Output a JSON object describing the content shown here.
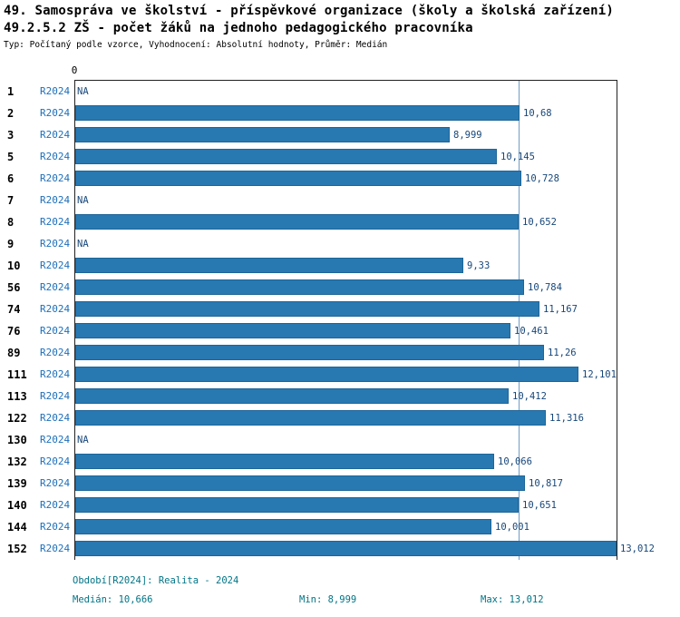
{
  "header": {
    "title1": "49. Samospráva ve školství - příspěvkové organizace (školy a školská zařízení)",
    "title2": "49.2.5.2 ZŠ - počet žáků na jednoho pedagogického pracovníka",
    "meta": "Typ: Počítaný podle vzorce, Vyhodnocení: Absolutní hodnoty, Průměr: Medián"
  },
  "chart_data": {
    "type": "bar",
    "orientation": "horizontal",
    "origin_label": "0",
    "series_label": "R2024",
    "xlim": [
      0,
      13.012
    ],
    "median_value": 10.666,
    "rows": [
      {
        "id": "1",
        "value": null,
        "value_label": "NA"
      },
      {
        "id": "2",
        "value": 10.68,
        "value_label": "10,68"
      },
      {
        "id": "3",
        "value": 8.999,
        "value_label": "8,999"
      },
      {
        "id": "5",
        "value": 10.145,
        "value_label": "10,145"
      },
      {
        "id": "6",
        "value": 10.728,
        "value_label": "10,728"
      },
      {
        "id": "7",
        "value": null,
        "value_label": "NA"
      },
      {
        "id": "8",
        "value": 10.652,
        "value_label": "10,652"
      },
      {
        "id": "9",
        "value": null,
        "value_label": "NA"
      },
      {
        "id": "10",
        "value": 9.33,
        "value_label": "9,33"
      },
      {
        "id": "56",
        "value": 10.784,
        "value_label": "10,784"
      },
      {
        "id": "74",
        "value": 11.167,
        "value_label": "11,167"
      },
      {
        "id": "76",
        "value": 10.461,
        "value_label": "10,461"
      },
      {
        "id": "89",
        "value": 11.26,
        "value_label": "11,26"
      },
      {
        "id": "111",
        "value": 12.101,
        "value_label": "12,101"
      },
      {
        "id": "113",
        "value": 10.412,
        "value_label": "10,412"
      },
      {
        "id": "122",
        "value": 11.316,
        "value_label": "11,316"
      },
      {
        "id": "130",
        "value": null,
        "value_label": "NA"
      },
      {
        "id": "132",
        "value": 10.066,
        "value_label": "10,066"
      },
      {
        "id": "139",
        "value": 10.817,
        "value_label": "10,817"
      },
      {
        "id": "140",
        "value": 10.651,
        "value_label": "10,651"
      },
      {
        "id": "144",
        "value": 10.001,
        "value_label": "10,001"
      },
      {
        "id": "152",
        "value": 13.012,
        "value_label": "13,012"
      }
    ]
  },
  "footer": {
    "period": "Období[R2024]: Realita - 2024",
    "median": "Medián: 10,666",
    "min": "Min: 8,999",
    "max": "Max: 13,012"
  },
  "colors": {
    "bar": "#2879b2",
    "bar_border": "#1e6598",
    "series_label": "#1c6fba",
    "value_label": "#17477a",
    "footer": "#007486",
    "median_line": "#6f9cc4",
    "axis": "#222222"
  }
}
